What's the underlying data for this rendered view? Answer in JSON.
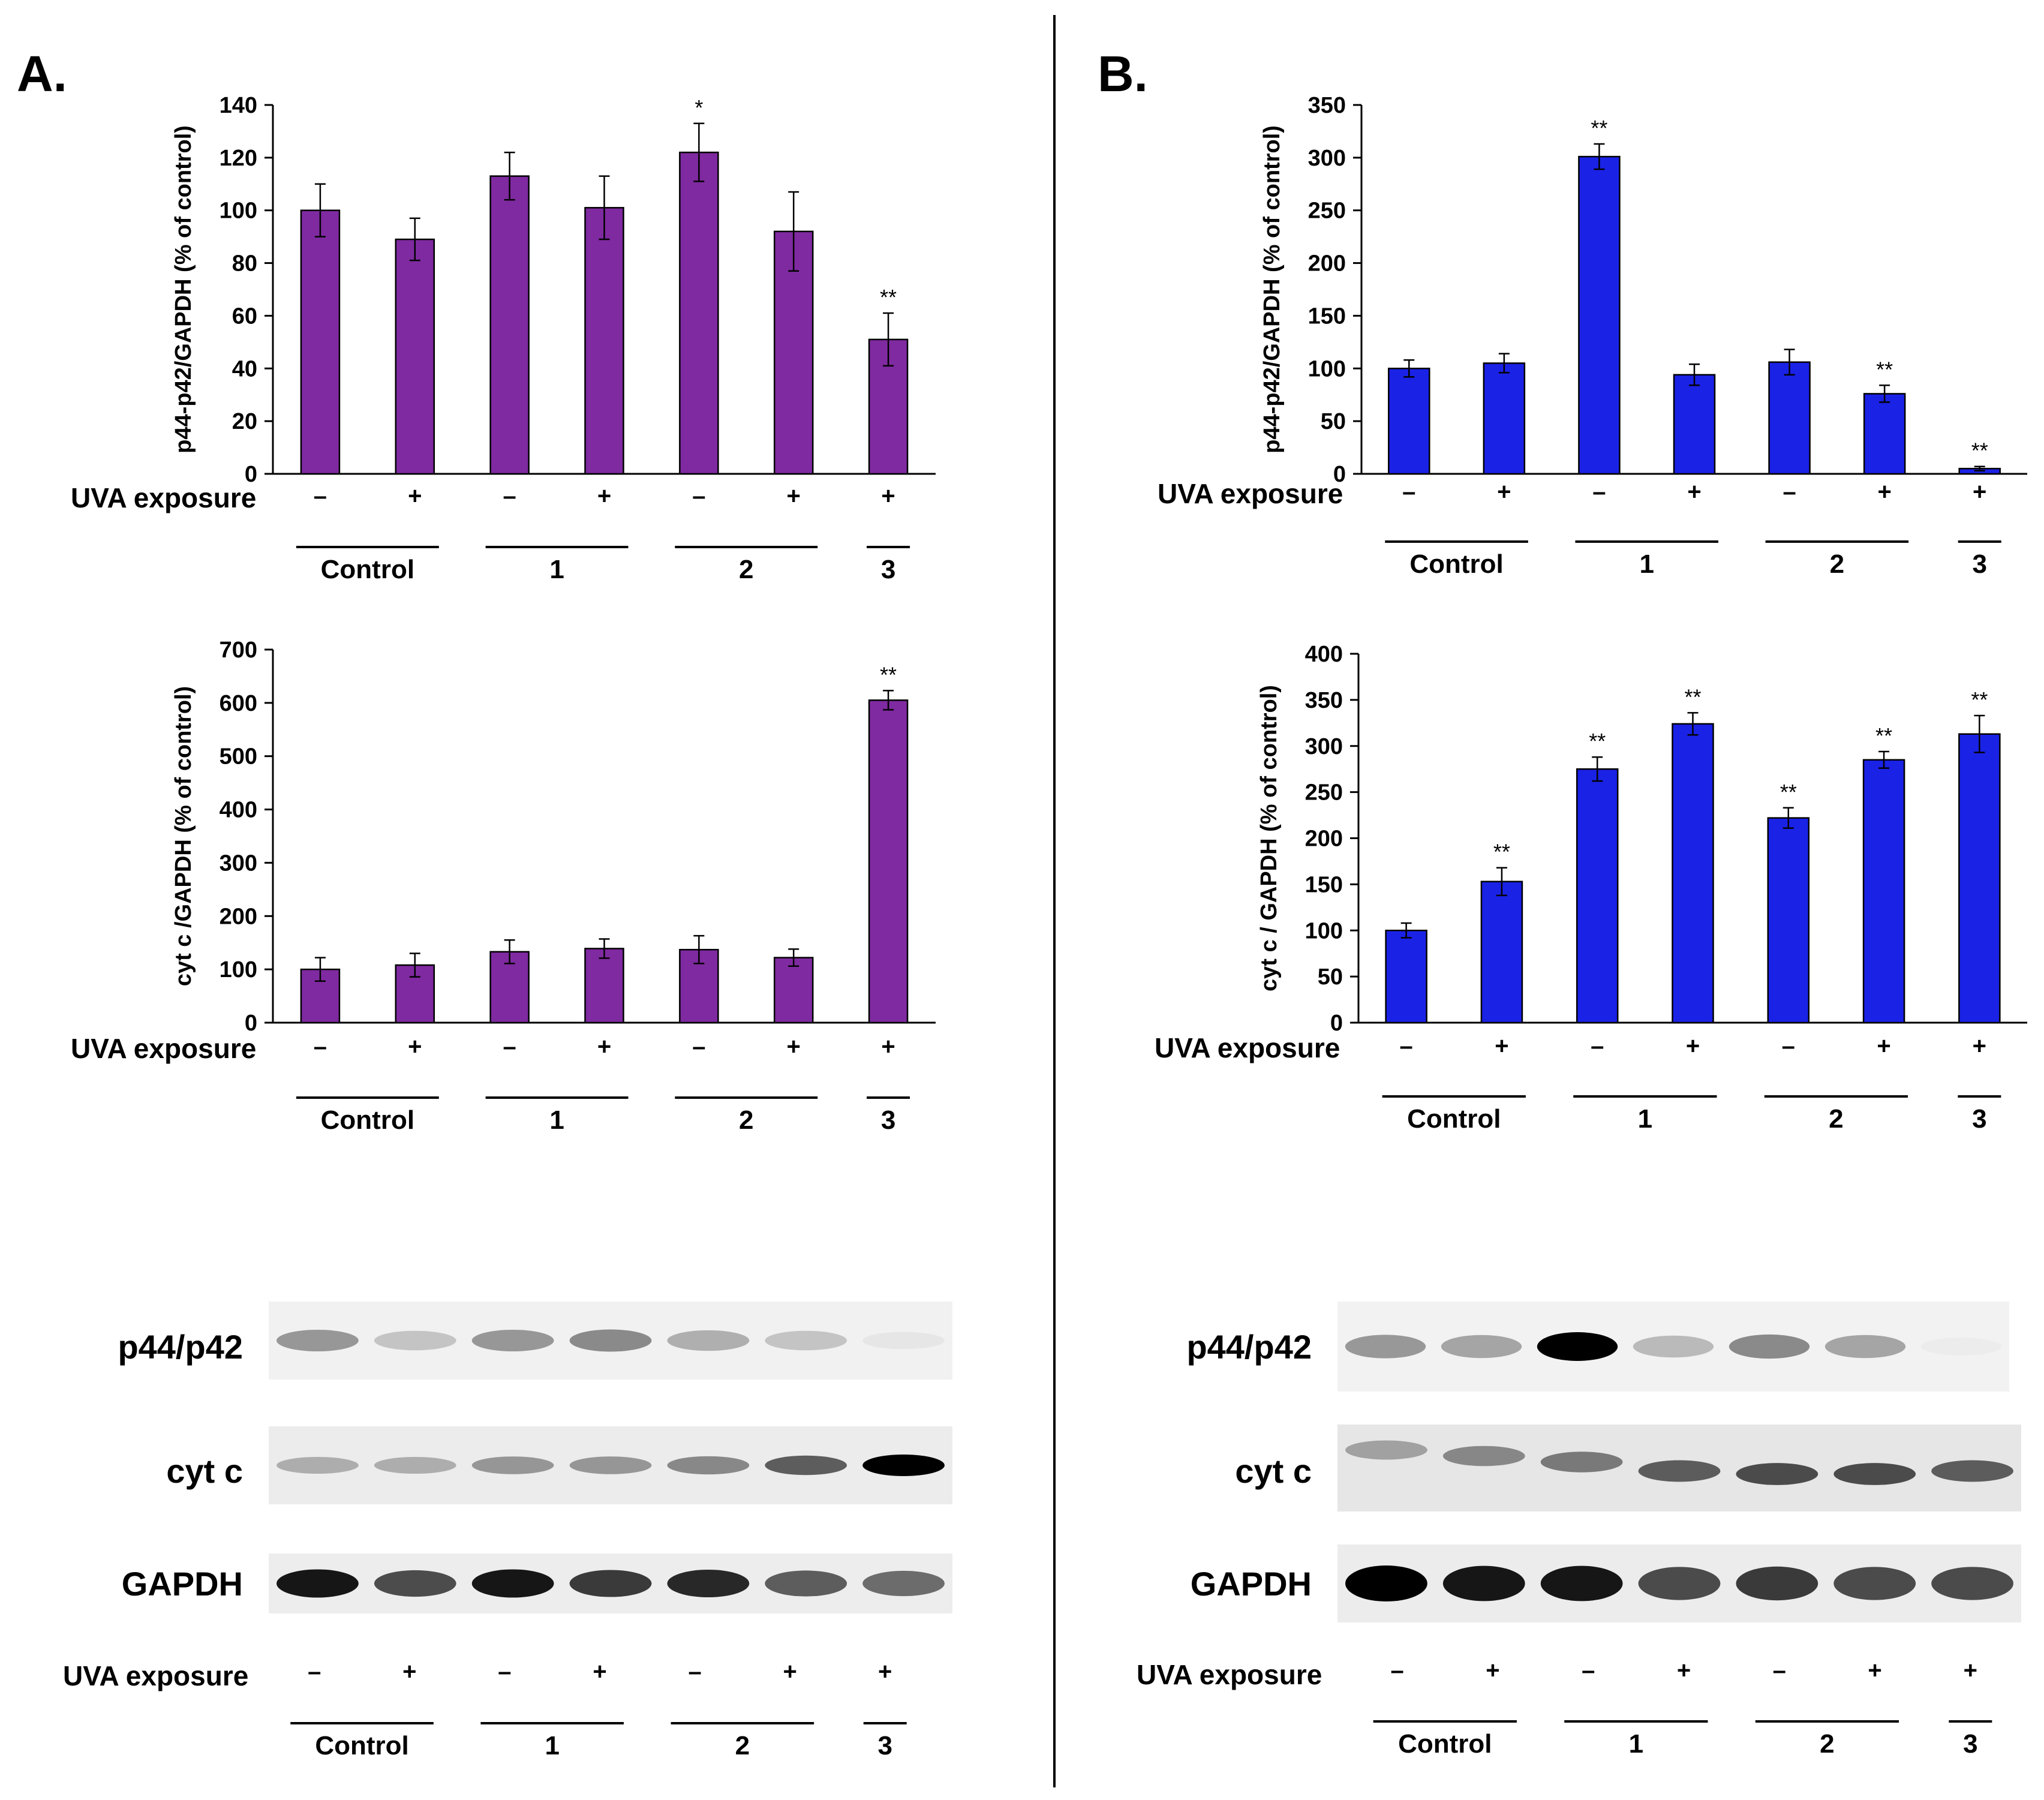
{
  "panels": [
    {
      "label": "A."
    },
    {
      "label": "B."
    }
  ],
  "uva_label": "UVA exposure",
  "uva_signs": [
    "–",
    "+",
    "–",
    "+",
    "–",
    "+",
    "+"
  ],
  "groups": [
    "Control",
    "1",
    "2",
    "3"
  ],
  "colors": {
    "panelA": "#7f2aa0",
    "panelB": "#1a22e6"
  },
  "blot_labels_a": [
    "p44/p42",
    "cyt c",
    "GAPDH"
  ],
  "blot_labels_b": [
    "p44/p42",
    "cyt c",
    "GAPDH"
  ],
  "chart_data": [
    {
      "type": "bar",
      "panel": "A",
      "ylabel": "p44-p42/GAPDH (% of control)",
      "ylim": [
        0,
        140
      ],
      "yticks": [
        0,
        20,
        40,
        60,
        80,
        100,
        120,
        140
      ],
      "values": [
        100,
        89,
        113,
        101,
        122,
        92,
        51
      ],
      "errors": [
        10,
        8,
        9,
        12,
        11,
        15,
        10
      ],
      "annotations": [
        "",
        "",
        "",
        "",
        "*",
        "",
        "**"
      ]
    },
    {
      "type": "bar",
      "panel": "A",
      "ylabel": "cyt c /GAPDH (% of control)",
      "ylim": [
        0,
        700
      ],
      "yticks": [
        0,
        100,
        200,
        300,
        400,
        500,
        600,
        700
      ],
      "values": [
        100,
        108,
        133,
        139,
        137,
        122,
        605
      ],
      "errors": [
        22,
        22,
        22,
        18,
        26,
        16,
        18
      ],
      "annotations": [
        "",
        "",
        "",
        "",
        "",
        "",
        "**"
      ]
    },
    {
      "type": "bar",
      "panel": "B",
      "ylabel": "p44-p42/GAPDH (% of control)",
      "ylim": [
        0,
        350
      ],
      "yticks": [
        0,
        50,
        100,
        150,
        200,
        250,
        300,
        350
      ],
      "values": [
        100,
        105,
        301,
        94,
        106,
        76,
        5
      ],
      "errors": [
        8,
        9,
        12,
        10,
        12,
        8,
        2
      ],
      "annotations": [
        "",
        "",
        "**",
        "",
        "",
        "**",
        "**"
      ]
    },
    {
      "type": "bar",
      "panel": "B",
      "ylabel": "cyt c / GAPDH (% of control)",
      "ylim": [
        0,
        400
      ],
      "yticks": [
        0,
        50,
        100,
        150,
        200,
        250,
        300,
        350,
        400
      ],
      "values": [
        100,
        153,
        275,
        324,
        222,
        285,
        313
      ],
      "errors": [
        8,
        15,
        13,
        12,
        11,
        9,
        20
      ],
      "annotations": [
        "",
        "**",
        "**",
        "**",
        "**",
        "**",
        "**"
      ]
    }
  ],
  "blot_intensity": {
    "a_p44": [
      0.55,
      0.35,
      0.55,
      0.6,
      0.45,
      0.35,
      0.12
    ],
    "a_cytc": [
      0.45,
      0.45,
      0.55,
      0.55,
      0.6,
      0.75,
      1.0
    ],
    "a_gapdh": [
      0.95,
      0.8,
      0.95,
      0.85,
      0.9,
      0.75,
      0.7
    ],
    "b_p44": [
      0.55,
      0.5,
      1.0,
      0.4,
      0.6,
      0.5,
      0.05
    ],
    "b_cytc": [
      0.5,
      0.6,
      0.65,
      0.75,
      0.8,
      0.8,
      0.75
    ],
    "b_gapdh": [
      1.0,
      0.95,
      0.95,
      0.8,
      0.85,
      0.8,
      0.8
    ]
  }
}
